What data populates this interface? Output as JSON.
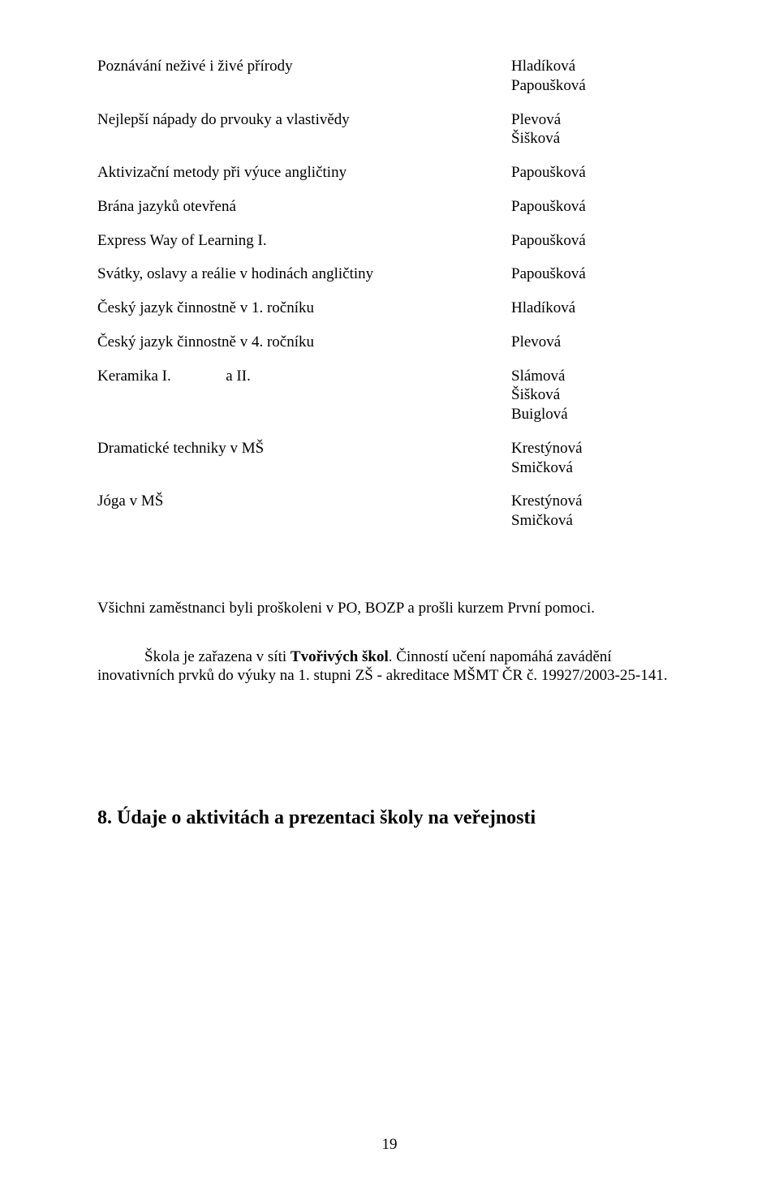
{
  "pairs": {
    "p1": {
      "left": "Poznávání neživé i živé přírody",
      "right1": "Hladíková",
      "right2": "Papoušková"
    },
    "p2": {
      "left": "Nejlepší nápady do prvouky a vlastivědy",
      "right1": "Plevová",
      "right2": "Šišková"
    },
    "p3": {
      "left": "Aktivizační metody při výuce angličtiny",
      "right1": "Papoušková"
    },
    "p4": {
      "left": "Brána jazyků otevřená",
      "right1": "Papoušková"
    },
    "p5": {
      "left": "Express Way of Learning I.",
      "right1": "Papoušková"
    },
    "p6": {
      "left": "Svátky, oslavy a reálie v hodinách angličtiny",
      "right1": "Papoušková"
    },
    "p7": {
      "left": "Český jazyk činnostně v 1. ročníku",
      "right1": "Hladíková"
    },
    "p8": {
      "left": "Český jazyk činnostně v 4. ročníku",
      "right1": "Plevová"
    },
    "p9": {
      "left_a": "Keramika I.",
      "left_b": "a II.",
      "right1": "Slámová",
      "right2": "Šišková",
      "right3": "Buiglová"
    },
    "p10": {
      "left": "Dramatické techniky v MŠ",
      "right1": "Krestýnová",
      "right2": "Smičková"
    },
    "p11": {
      "left": "Jóga v MŠ",
      "right1": "Krestýnová",
      "right2": "Smičková"
    }
  },
  "para1": "Všichni zaměstnanci byli proškoleni v PO, BOZP a prošli kurzem První pomoci.",
  "para2_pre": "Škola je zařazena v síti ",
  "para2_bold": "Tvořivých škol",
  "para2_post": ". Činností učení napomáhá zavádění inovativních prvků do výuky na 1. stupni ZŠ - akreditace MŠMT ČR č. 19927/2003-25-141.",
  "heading": "8. Údaje o aktivitách a prezentaci školy na veřejnosti",
  "pageNumber": "19"
}
